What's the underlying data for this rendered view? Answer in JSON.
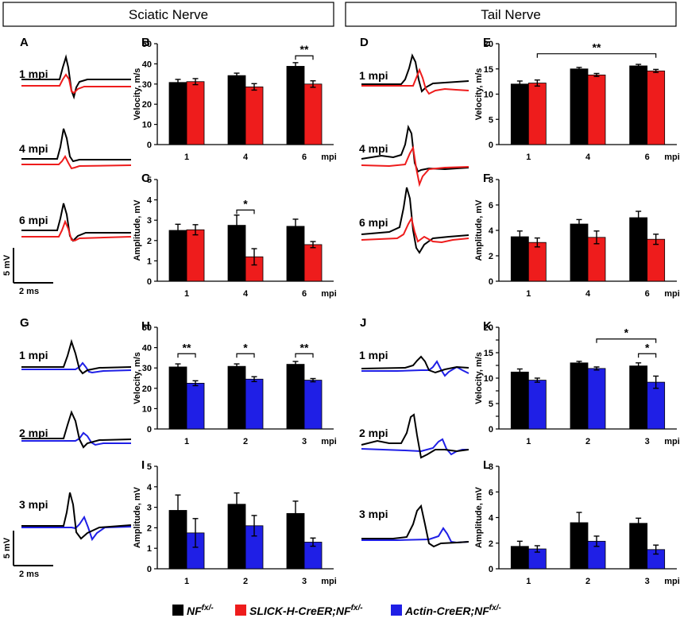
{
  "headers": {
    "left": "Sciatic Nerve",
    "right": "Tail Nerve"
  },
  "colors": {
    "nf": "#000000",
    "slick": "#ee1c1c",
    "actin": "#1f1fe6",
    "sig_red": "#ee1c1c",
    "sig_blue": "#1f1fe6"
  },
  "legend": [
    {
      "label": "NF",
      "sup": "fx/-",
      "color": "#000000"
    },
    {
      "label": "SLICK-H-CreER;NF",
      "sup": "fx/-",
      "color": "#ee1c1c"
    },
    {
      "label": "Actin-CreER;NF",
      "sup": "fx/-",
      "color": "#1f1fe6"
    }
  ],
  "trace_panels": [
    {
      "letter": "A",
      "labels": [
        "1 mpi",
        "4 mpi",
        "6 mpi"
      ]
    },
    {
      "letter": "D",
      "labels": [
        "1 mpi",
        "4 mpi",
        "6 mpi"
      ]
    },
    {
      "letter": "G",
      "labels": [
        "1 mpi",
        "2 mpi",
        "3 mpi"
      ]
    },
    {
      "letter": "J",
      "labels": [
        "1 mpi",
        "2 mpi",
        "3 mpi"
      ]
    }
  ],
  "scale_bar": {
    "vertical": "5 mV",
    "horizontal": "2 ms"
  },
  "chart_data": [
    {
      "id": "B",
      "type": "bar",
      "ylabel": "Velocity, m/s",
      "ylim": [
        0,
        50
      ],
      "yticks": [
        0,
        10,
        20,
        30,
        40,
        50
      ],
      "categories": [
        "1",
        "4",
        "6"
      ],
      "unit": "mpi",
      "series": [
        {
          "name": "NF fx/-",
          "color": "#000000",
          "values": [
            30.8,
            34.2,
            38.8
          ],
          "errors": [
            1.5,
            1.2,
            1.8
          ]
        },
        {
          "name": "SLICK-H-CreER;NF fx/-",
          "color": "#ee1c1c",
          "values": [
            31.2,
            28.6,
            30.0
          ],
          "errors": [
            1.5,
            1.6,
            1.6
          ]
        }
      ],
      "sig": [
        {
          "g1": 2,
          "s1": 0,
          "g2": 2,
          "s2": 1,
          "label": "**",
          "color": "#000000",
          "y": 44
        }
      ]
    },
    {
      "id": "C",
      "type": "bar",
      "ylabel": "Amplitude, mV",
      "ylim": [
        0,
        5
      ],
      "yticks": [
        0,
        1,
        2,
        3,
        4,
        5
      ],
      "categories": [
        "1",
        "4",
        "6"
      ],
      "unit": "mpi",
      "series": [
        {
          "name": "NF fx/-",
          "color": "#000000",
          "values": [
            2.5,
            2.75,
            2.7
          ],
          "errors": [
            0.3,
            0.5,
            0.35
          ]
        },
        {
          "name": "SLICK-H-CreER;NF fx/-",
          "color": "#ee1c1c",
          "values": [
            2.53,
            1.2,
            1.8
          ],
          "errors": [
            0.25,
            0.4,
            0.15
          ]
        }
      ],
      "sig": [
        {
          "g1": 1,
          "s1": 0,
          "g2": 1,
          "s2": 1,
          "label": "*",
          "color": "#000000",
          "y": 3.5
        }
      ]
    },
    {
      "id": "E",
      "type": "bar",
      "ylabel": "Velocity, m/s",
      "ylim": [
        0,
        20
      ],
      "yticks": [
        0,
        5,
        10,
        15,
        20
      ],
      "categories": [
        "1",
        "4",
        "6"
      ],
      "unit": "mpi",
      "series": [
        {
          "name": "NF fx/-",
          "color": "#000000",
          "values": [
            12.0,
            15.0,
            15.6
          ],
          "errors": [
            0.6,
            0.3,
            0.3
          ]
        },
        {
          "name": "SLICK-H-CreER;NF fx/-",
          "color": "#ee1c1c",
          "values": [
            12.2,
            13.8,
            14.6
          ],
          "errors": [
            0.6,
            0.3,
            0.3
          ]
        }
      ],
      "sig": [
        {
          "g1": 0,
          "s1": 1,
          "g2": 2,
          "s2": 1,
          "label": "**",
          "color": "#ee1c1c",
          "y": 18
        }
      ]
    },
    {
      "id": "F",
      "type": "bar",
      "ylabel": "Amplitude, mV",
      "ylim": [
        0,
        8
      ],
      "yticks": [
        0,
        2,
        4,
        6,
        8
      ],
      "categories": [
        "1",
        "4",
        "6"
      ],
      "unit": "mpi",
      "series": [
        {
          "name": "NF fx/-",
          "color": "#000000",
          "values": [
            3.5,
            4.5,
            5.0
          ],
          "errors": [
            0.45,
            0.35,
            0.5
          ]
        },
        {
          "name": "SLICK-H-CreER;NF fx/-",
          "color": "#ee1c1c",
          "values": [
            3.05,
            3.45,
            3.3
          ],
          "errors": [
            0.35,
            0.5,
            0.4
          ]
        }
      ],
      "sig": []
    },
    {
      "id": "H",
      "type": "bar",
      "ylabel": "Velocity, m/s",
      "ylim": [
        0,
        50
      ],
      "yticks": [
        0,
        10,
        20,
        30,
        40,
        50
      ],
      "categories": [
        "1",
        "2",
        "3"
      ],
      "unit": "mpi",
      "series": [
        {
          "name": "NF fx/-",
          "color": "#000000",
          "values": [
            30.5,
            30.8,
            31.8
          ],
          "errors": [
            1.5,
            1.2,
            1.4
          ]
        },
        {
          "name": "Actin-CreER;NF fx/-",
          "color": "#1f1fe6",
          "values": [
            22.5,
            24.5,
            24.0
          ],
          "errors": [
            1.2,
            1.2,
            0.8
          ]
        }
      ],
      "sig": [
        {
          "g1": 0,
          "s1": 0,
          "g2": 0,
          "s2": 1,
          "label": "**",
          "color": "#000000",
          "y": 37
        },
        {
          "g1": 1,
          "s1": 0,
          "g2": 1,
          "s2": 1,
          "label": "*",
          "color": "#000000",
          "y": 37
        },
        {
          "g1": 2,
          "s1": 0,
          "g2": 2,
          "s2": 1,
          "label": "**",
          "color": "#000000",
          "y": 37
        }
      ]
    },
    {
      "id": "I",
      "type": "bar",
      "ylabel": "Amplitude, mV",
      "ylim": [
        0,
        5
      ],
      "yticks": [
        0,
        1,
        2,
        3,
        4,
        5
      ],
      "categories": [
        "1",
        "2",
        "3"
      ],
      "unit": "mpi",
      "series": [
        {
          "name": "NF fx/-",
          "color": "#000000",
          "values": [
            2.85,
            3.15,
            2.7
          ],
          "errors": [
            0.75,
            0.55,
            0.6
          ]
        },
        {
          "name": "Actin-CreER;NF fx/-",
          "color": "#1f1fe6",
          "values": [
            1.75,
            2.1,
            1.3
          ],
          "errors": [
            0.7,
            0.5,
            0.2
          ]
        }
      ],
      "sig": []
    },
    {
      "id": "K",
      "type": "bar",
      "ylabel": "Velocity, m/s",
      "ylim": [
        0,
        20
      ],
      "yticks": [
        0,
        2.5,
        5,
        7.5,
        10,
        12.5,
        15,
        17.5,
        20
      ],
      "ytick_labels": [
        "0",
        "",
        "5",
        "",
        "10",
        "",
        "15",
        "",
        "20"
      ],
      "categories": [
        "1",
        "2",
        "3"
      ],
      "unit": "mpi",
      "series": [
        {
          "name": "NF fx/-",
          "color": "#000000",
          "values": [
            11.2,
            13.0,
            12.4
          ],
          "errors": [
            0.6,
            0.3,
            0.6
          ]
        },
        {
          "name": "Actin-CreER;NF fx/-",
          "color": "#1f1fe6",
          "values": [
            9.6,
            11.9,
            9.2
          ],
          "errors": [
            0.4,
            0.3,
            1.2
          ]
        }
      ],
      "sig": [
        {
          "g1": 1,
          "s1": 1,
          "g2": 2,
          "s2": 1,
          "label": "*",
          "color": "#1f1fe6",
          "y": 17.7
        },
        {
          "g1": 2,
          "s1": 0,
          "g2": 2,
          "s2": 1,
          "label": "*",
          "color": "#000000",
          "y": 14.8
        }
      ]
    },
    {
      "id": "L",
      "type": "bar",
      "ylabel": "Amplitude, mV",
      "ylim": [
        0,
        8
      ],
      "yticks": [
        0,
        2,
        4,
        6,
        8
      ],
      "categories": [
        "1",
        "2",
        "3"
      ],
      "unit": "mpi",
      "series": [
        {
          "name": "NF fx/-",
          "color": "#000000",
          "values": [
            1.75,
            3.6,
            3.55
          ],
          "errors": [
            0.4,
            0.8,
            0.4
          ]
        },
        {
          "name": "Actin-CreER;NF fx/-",
          "color": "#1f1fe6",
          "values": [
            1.55,
            2.15,
            1.5
          ],
          "errors": [
            0.25,
            0.4,
            0.35
          ]
        }
      ],
      "sig": []
    }
  ]
}
